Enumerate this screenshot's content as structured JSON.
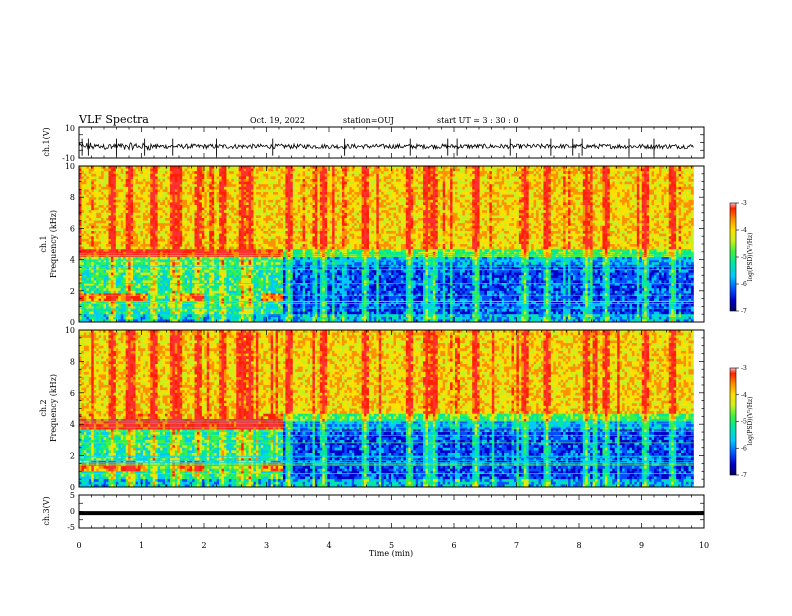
{
  "header": {
    "title": "VLF Spectra",
    "date": "Oct. 19, 2022",
    "station": "station=OUJ",
    "start": "start  UT =   3  : 30 : 0"
  },
  "colors": {
    "spectrogram_cmap": [
      "#000060",
      "#0000c8",
      "#0050ff",
      "#00c8ff",
      "#00e8a0",
      "#40f040",
      "#c8f020",
      "#ffe000",
      "#ff9000",
      "#ff2000",
      "#ff3030"
    ],
    "trace": "#000000",
    "axes": "#000000"
  },
  "chart_data": [
    {
      "type": "line",
      "name": "ch1-waveform",
      "ylabel": "ch.1(V)",
      "ylim": [
        -10,
        10
      ],
      "yticks": [
        "10",
        "-10"
      ],
      "xlim": [
        0,
        10
      ],
      "description_values": {
        "baseline": -2.5,
        "typical_amplitude": 1.5,
        "spike_times_min": [
          0.05,
          0.15,
          0.6,
          1.05,
          1.5,
          2.2,
          3.1,
          4.25,
          5.3,
          5.9,
          6.05,
          6.9,
          7.55,
          7.9,
          8.05,
          8.8,
          9.2
        ]
      }
    },
    {
      "type": "heatmap",
      "name": "ch1-spectrogram",
      "ylabel": "ch.1\nFrequency  (kHz)",
      "ylabel_lines": [
        "ch.1",
        "Frequency  (kHz)"
      ],
      "xlim": [
        0,
        10
      ],
      "ylim": [
        0,
        10
      ],
      "data_xmax": 9.83,
      "yticks": [
        "0",
        "2",
        "4",
        "6",
        "8",
        "10"
      ],
      "clim": [
        -7,
        -3
      ],
      "colorbar_label": "log(PSD)(V²/Hz)",
      "colorbar_ticks": [
        "-3",
        "-4",
        "-5",
        "-6",
        "-7"
      ],
      "hf_noise_band_khz": [
        4.2,
        4.6
      ],
      "hf_noise_until_min": 3.25,
      "low_band_khz": [
        1.3,
        1.9
      ],
      "bright_columns_min": [
        0.55,
        0.8,
        1.2,
        1.5,
        1.6,
        1.9,
        2.3,
        2.6,
        2.75,
        3.35,
        3.9,
        4.6,
        5.3,
        5.55,
        5.7,
        6.35,
        7.15,
        7.5,
        8.1,
        8.45,
        9.05,
        9.5
      ]
    },
    {
      "type": "heatmap",
      "name": "ch2-spectrogram",
      "ylabel": "ch.2\nFrequency  (kHz)",
      "ylabel_lines": [
        "ch.2",
        "Frequency  (kHz)"
      ],
      "xlim": [
        0,
        10
      ],
      "ylim": [
        0,
        10
      ],
      "data_xmax": 9.83,
      "yticks": [
        "0",
        "2",
        "4",
        "6",
        "8",
        "10"
      ],
      "clim": [
        -7,
        -3
      ],
      "colorbar_label": "log(PSD)(V²/Hz)",
      "colorbar_ticks": [
        "-3",
        "-4",
        "-5",
        "-6",
        "-7"
      ],
      "hf_noise_band_khz": [
        3.7,
        4.3
      ],
      "hf_noise_until_min": 3.25,
      "low_band_khz": [
        1.0,
        1.6
      ],
      "bright_columns_min": [
        0.55,
        0.8,
        1.2,
        1.5,
        1.6,
        1.9,
        2.3,
        2.6,
        2.75,
        3.35,
        3.9,
        4.6,
        5.3,
        5.55,
        5.7,
        6.35,
        7.15,
        7.5,
        8.1,
        8.45,
        9.05,
        9.5
      ]
    },
    {
      "type": "line",
      "name": "ch3-waveform",
      "ylabel": "ch.3(V)",
      "ylim": [
        -5,
        5
      ],
      "yticks": [
        "5",
        "0",
        "-5"
      ],
      "xlim": [
        0,
        10
      ],
      "constant_value": -0.5,
      "xlabel": "Time  (min)",
      "xticks": [
        "0",
        "1",
        "2",
        "3",
        "4",
        "5",
        "6",
        "7",
        "8",
        "9",
        "10"
      ]
    }
  ]
}
